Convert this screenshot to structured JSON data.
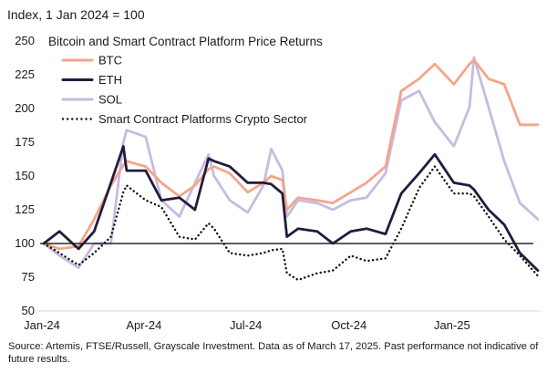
{
  "chart_data": {
    "type": "line",
    "title": "Bitcoin and Smart Contract Platform Price Returns",
    "ylabel": "Index, 1 Jan 2024 = 100",
    "xlabel": "",
    "ylim": [
      50,
      250
    ],
    "yticks": [
      50,
      75,
      100,
      125,
      150,
      175,
      200,
      225,
      250
    ],
    "xlim": [
      "2024-01-01",
      "2025-03-17"
    ],
    "xticks": [
      {
        "date": "2024-01-01",
        "label": "Jan-24"
      },
      {
        "date": "2024-04-01",
        "label": "Apr-24"
      },
      {
        "date": "2024-07-01",
        "label": "Jul-24"
      },
      {
        "date": "2024-10-01",
        "label": "Oct-24"
      },
      {
        "date": "2025-01-01",
        "label": "Jan-25"
      }
    ],
    "reference_line": 100,
    "grid": false,
    "legend_position": "top-left",
    "x": [
      "2024-01-01",
      "2024-01-15",
      "2024-02-01",
      "2024-02-15",
      "2024-03-01",
      "2024-03-12",
      "2024-03-15",
      "2024-04-01",
      "2024-04-15",
      "2024-05-01",
      "2024-05-15",
      "2024-05-27",
      "2024-06-01",
      "2024-06-15",
      "2024-07-01",
      "2024-07-15",
      "2024-07-22",
      "2024-08-01",
      "2024-08-05",
      "2024-08-15",
      "2024-09-01",
      "2024-09-15",
      "2024-10-01",
      "2024-10-15",
      "2024-11-01",
      "2024-11-15",
      "2024-12-01",
      "2024-12-15",
      "2025-01-01",
      "2025-01-15",
      "2025-01-19",
      "2025-02-01",
      "2025-02-15",
      "2025-03-01",
      "2025-03-17"
    ],
    "series": [
      {
        "name": "BTC",
        "color": "#f4a58a",
        "style": "solid",
        "values": [
          100,
          96,
          98,
          118,
          143,
          158,
          161,
          157,
          145,
          135,
          143,
          155,
          157,
          152,
          138,
          145,
          150,
          147,
          125,
          134,
          132,
          130,
          138,
          145,
          157,
          213,
          222,
          233,
          218,
          233,
          236,
          222,
          218,
          188,
          188
        ]
      },
      {
        "name": "ETH",
        "color": "#231a3d",
        "style": "solid",
        "values": [
          100,
          109,
          96,
          109,
          145,
          172,
          154,
          154,
          132,
          134,
          125,
          163,
          161,
          157,
          145,
          145,
          144,
          137,
          105,
          111,
          109,
          100,
          109,
          111,
          107,
          137,
          152,
          166,
          145,
          143,
          140,
          125,
          114,
          93,
          80
        ]
      },
      {
        "name": "SOL",
        "color": "#c3bde0",
        "style": "solid",
        "values": [
          100,
          91,
          82,
          100,
          100,
          175,
          184,
          179,
          132,
          120,
          145,
          166,
          150,
          132,
          123,
          143,
          170,
          154,
          120,
          132,
          130,
          125,
          132,
          134,
          152,
          206,
          213,
          190,
          172,
          201,
          238,
          201,
          161,
          130,
          118
        ]
      },
      {
        "name": "Smart Contract Platforms Crypto Sector",
        "color": "#111111",
        "style": "dotted",
        "values": [
          100,
          93,
          84,
          93,
          105,
          138,
          143,
          132,
          127,
          105,
          103,
          115,
          111,
          93,
          91,
          93,
          95,
          96,
          78,
          73,
          78,
          80,
          91,
          87,
          89,
          111,
          141,
          157,
          137,
          137,
          135,
          120,
          103,
          91,
          76
        ]
      }
    ]
  },
  "source": "Source: Artemis, FTSE/Russell, Grayscale Investment. Data as of March 17, 2025. Past performance not indicative of future results."
}
